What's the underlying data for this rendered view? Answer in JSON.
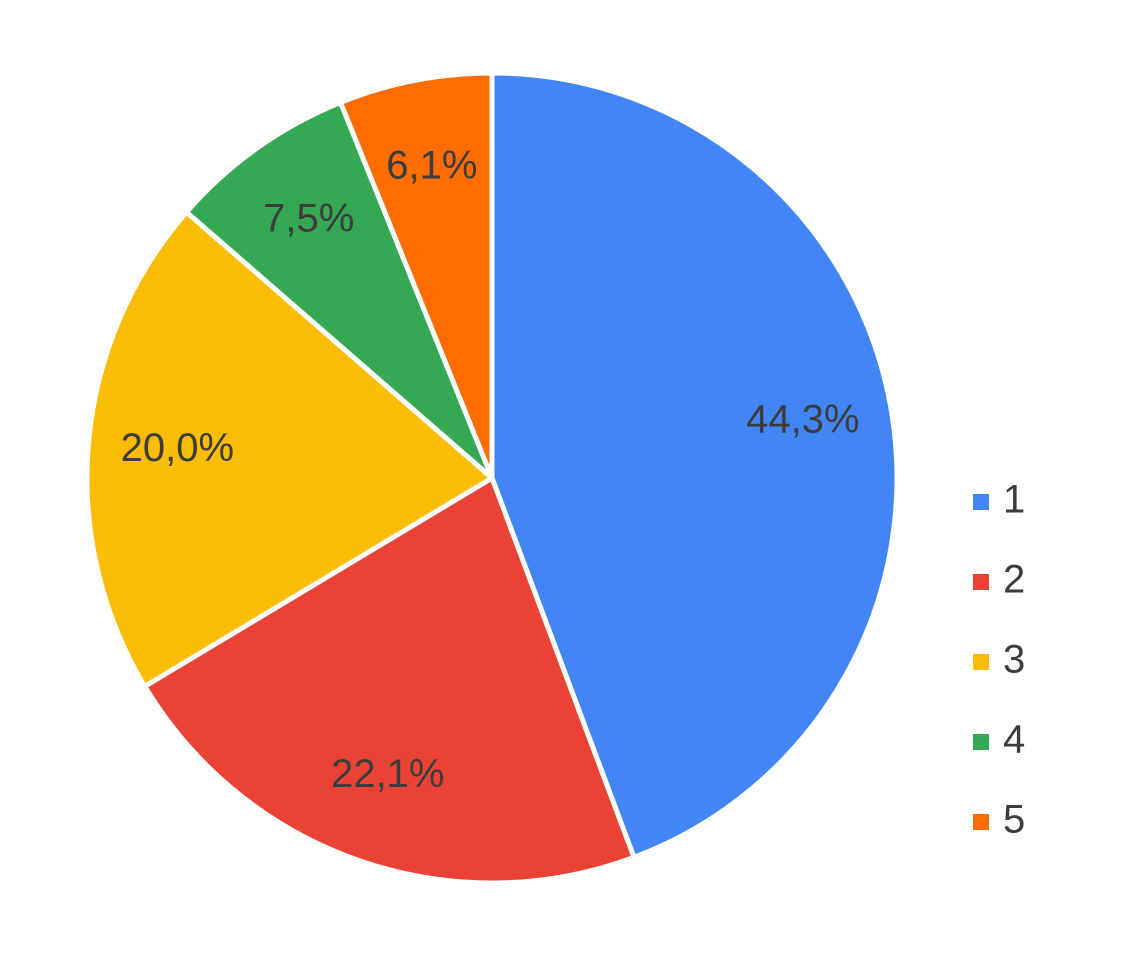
{
  "chart_data": {
    "type": "pie",
    "categories": [
      "1",
      "2",
      "3",
      "4",
      "5"
    ],
    "values": [
      44.3,
      22.1,
      20.0,
      7.5,
      6.1
    ],
    "value_labels": [
      "44,3%",
      "22,1%",
      "20,0%",
      "7,5%",
      "6,1%"
    ],
    "colors": [
      "#4285f4",
      "#ea4335",
      "#fbbc04",
      "#34a853",
      "#ff6d01"
    ],
    "legend": "right"
  }
}
